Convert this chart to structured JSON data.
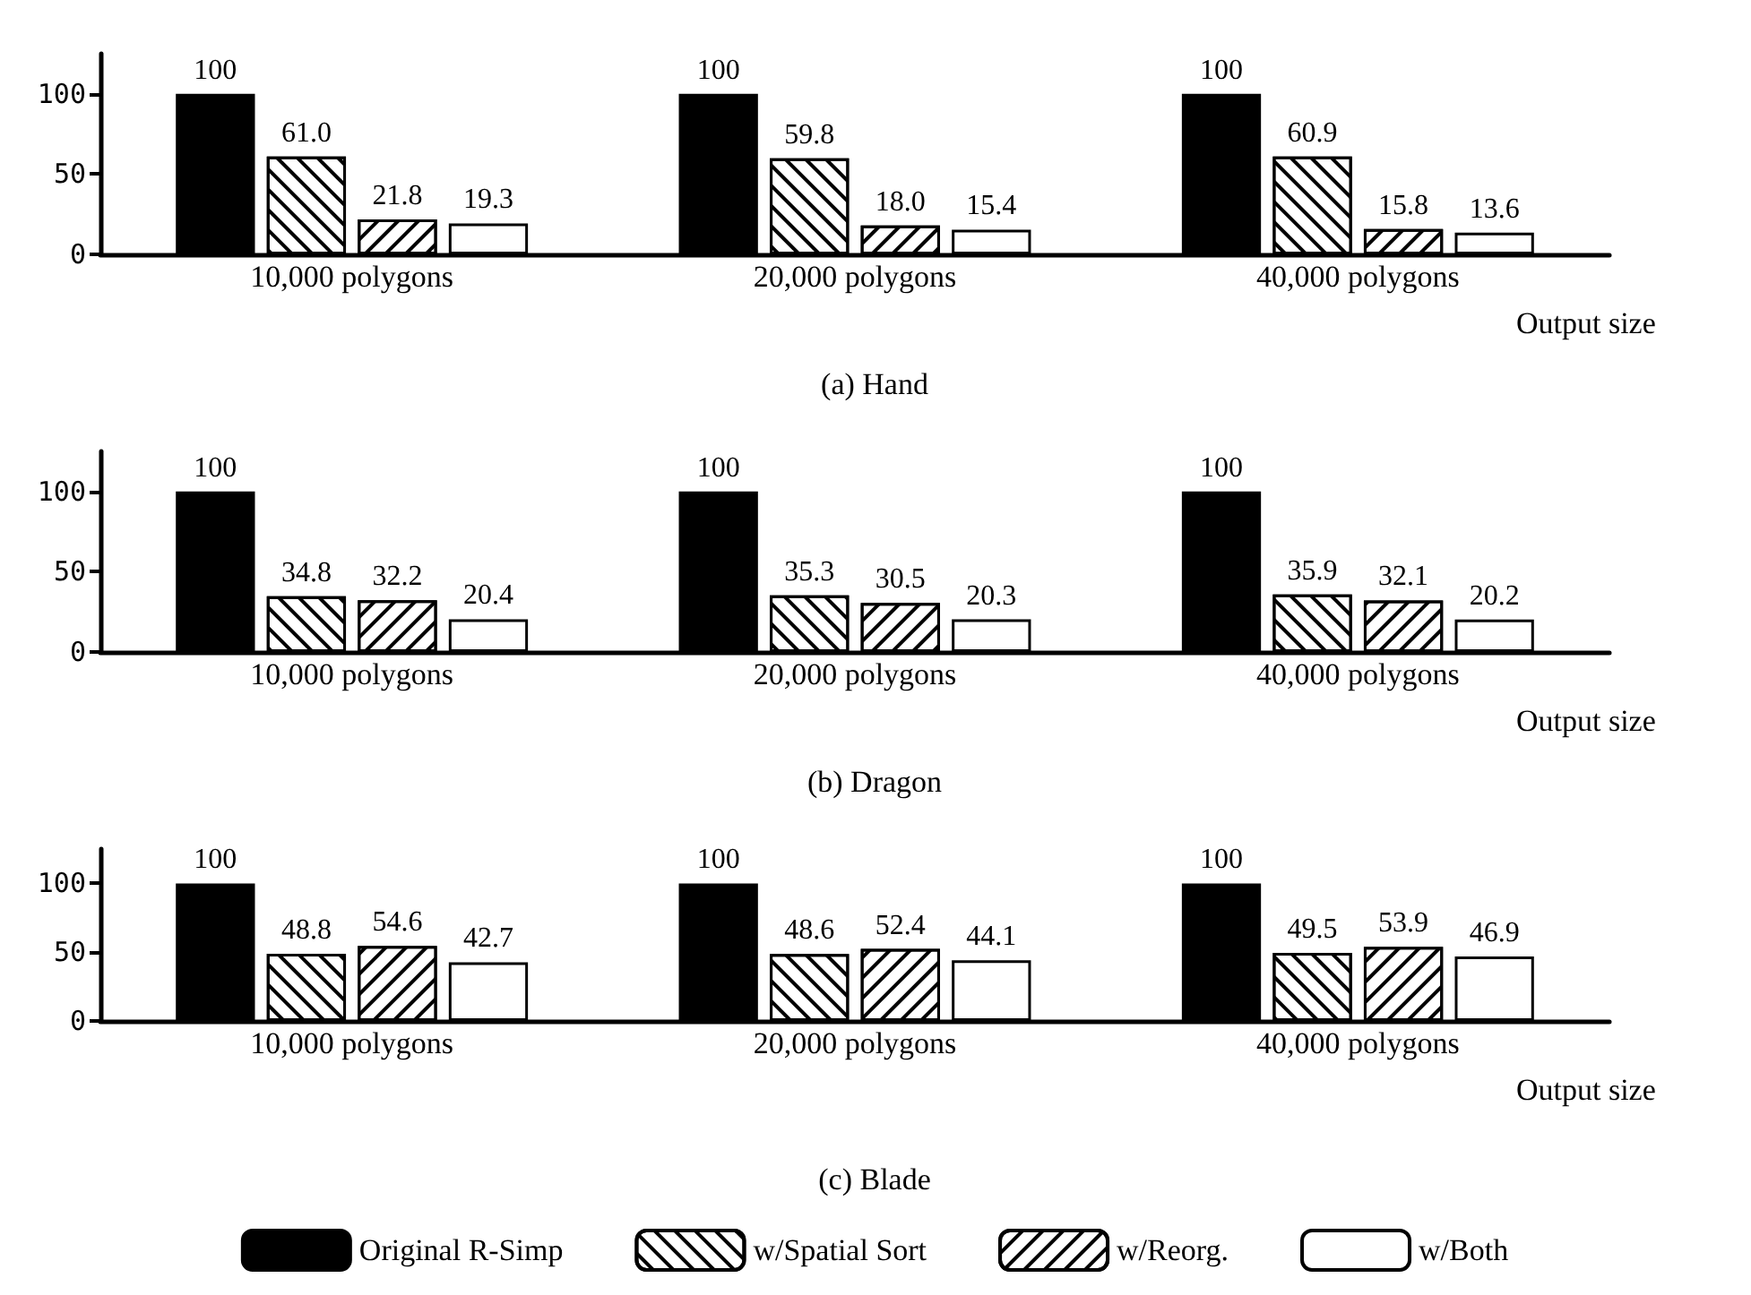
{
  "chart_data": [
    {
      "type": "bar",
      "title": "(a) Hand",
      "xlabel": "Output size",
      "categories": [
        "10,000 polygons",
        "20,000 polygons",
        "40,000 polygons"
      ],
      "ylim": [
        0,
        125
      ],
      "yticks": [
        0,
        50,
        100
      ],
      "grid": false,
      "legend": false,
      "series": [
        {
          "color": "#000000",
          "values": [
            100,
            100,
            100
          ],
          "value_labels": [
            "100",
            "100",
            "100"
          ]
        },
        {
          "color": "#ffffff",
          "values": [
            61.0,
            59.8,
            60.9
          ],
          "value_labels": [
            "61.0",
            "59.8",
            "60.9"
          ]
        },
        {
          "color": "#ffffff",
          "values": [
            21.8,
            18.0,
            15.8
          ],
          "value_labels": [
            "21.8",
            "18.0",
            "15.8"
          ]
        },
        {
          "color": "#ffffff",
          "values": [
            19.3,
            15.4,
            13.6
          ],
          "value_labels": [
            "19.3",
            "15.4",
            "13.6"
          ]
        }
      ]
    },
    {
      "type": "bar",
      "title": "(b) Dragon",
      "xlabel": "Output size",
      "categories": [
        "10,000 polygons",
        "20,000 polygons",
        "40,000 polygons"
      ],
      "ylim": [
        0,
        125
      ],
      "yticks": [
        0,
        50,
        100
      ],
      "grid": false,
      "legend": false,
      "series": [
        {
          "color": "#000000",
          "values": [
            100,
            100,
            100
          ],
          "value_labels": [
            "100",
            "100",
            "100"
          ]
        },
        {
          "color": "#ffffff",
          "values": [
            34.8,
            35.3,
            35.9
          ],
          "value_labels": [
            "34.8",
            "35.3",
            "35.9"
          ]
        },
        {
          "color": "#ffffff",
          "values": [
            32.2,
            30.5,
            32.1
          ],
          "value_labels": [
            "32.2",
            "30.5",
            "32.1"
          ]
        },
        {
          "color": "#ffffff",
          "values": [
            20.4,
            20.3,
            20.2
          ],
          "value_labels": [
            "20.4",
            "20.3",
            "20.2"
          ]
        }
      ]
    },
    {
      "type": "bar",
      "title": "(c) Blade",
      "xlabel": "Output size",
      "categories": [
        "10,000 polygons",
        "20,000 polygons",
        "40,000 polygons"
      ],
      "ylim": [
        0,
        125
      ],
      "yticks": [
        0,
        50,
        100
      ],
      "grid": false,
      "legend": "bottom",
      "series": [
        {
          "name": "Original R-Simp",
          "color": "#000000",
          "values": [
            100,
            100,
            100
          ],
          "value_labels": [
            "100",
            "100",
            "100"
          ]
        },
        {
          "name": "w/Spatial Sort",
          "color": "#ffffff",
          "values": [
            48.8,
            48.6,
            49.5
          ],
          "value_labels": [
            "48.8",
            "48.6",
            "49.5"
          ]
        },
        {
          "name": "w/Reorg.",
          "color": "#ffffff",
          "values": [
            54.6,
            52.4,
            53.9
          ],
          "value_labels": [
            "54.6",
            "52.4",
            "53.9"
          ]
        },
        {
          "name": "w/Both",
          "color": "#ffffff",
          "values": [
            42.7,
            44.1,
            46.9
          ],
          "value_labels": [
            "42.7",
            "44.1",
            "46.9"
          ]
        }
      ]
    }
  ]
}
